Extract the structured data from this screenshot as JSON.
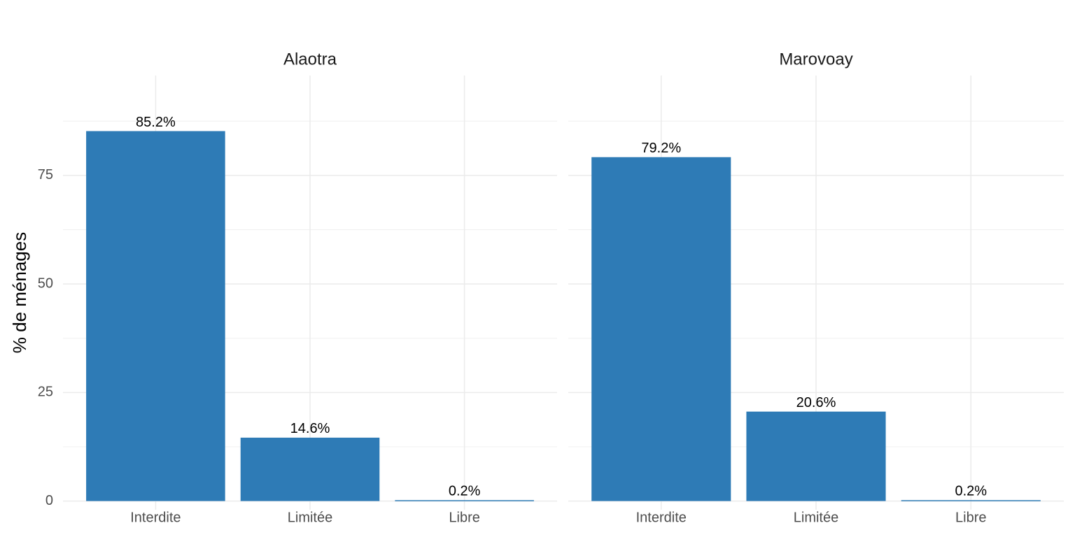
{
  "chart_data": [
    {
      "type": "bar",
      "title": "Alaotra",
      "y_label": "% de ménages",
      "categories": [
        "Interdite",
        "Limitée",
        "Libre"
      ],
      "values": [
        85.2,
        14.6,
        0.2
      ],
      "value_labels": [
        "85.2%",
        "14.6%",
        "0.2%"
      ],
      "color": "#2e7bb6",
      "ylim": [
        -2,
        98
      ],
      "yticks": [
        0,
        25,
        50,
        75
      ],
      "minor_yticks": [
        12.5,
        37.5,
        62.5,
        87.5
      ],
      "grid": true
    },
    {
      "type": "bar",
      "title": "Marovoay",
      "categories": [
        "Interdite",
        "Limitée",
        "Libre"
      ],
      "values": [
        79.2,
        20.6,
        0.2
      ],
      "value_labels": [
        "79.2%",
        "20.6%",
        "0.2%"
      ],
      "color": "#2e7bb6",
      "ylim": [
        -2,
        98
      ],
      "yticks": [
        0,
        25,
        50,
        75
      ],
      "minor_yticks": [
        12.5,
        37.5,
        62.5,
        87.5
      ],
      "grid": true
    }
  ]
}
